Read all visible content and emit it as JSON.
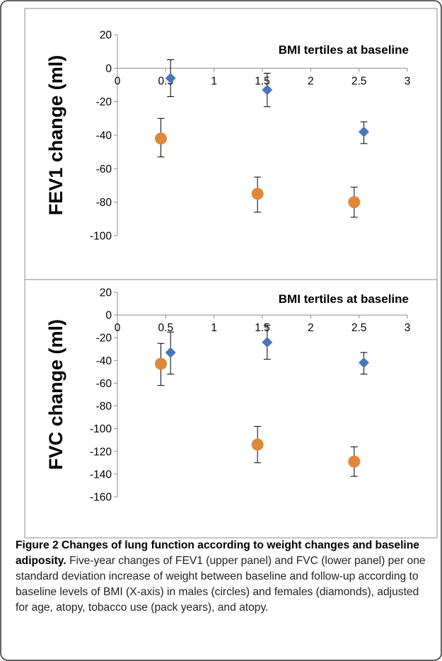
{
  "chart_data": [
    {
      "type": "scatter",
      "panel": "upper",
      "title": "BMI tertiles at baseline",
      "ylabel": "FEV1 change (ml)",
      "xlabel": "",
      "xlim": [
        0,
        3
      ],
      "ylim": [
        -100,
        20
      ],
      "x_ticks": [
        "0",
        "0.5",
        "1",
        "1.5",
        "2",
        "2.5",
        "3"
      ],
      "y_ticks": [
        "20",
        "0",
        "-20",
        "-40",
        "-60",
        "-80",
        "-100"
      ],
      "grid": false,
      "series": [
        {
          "marker": "diamond",
          "color": "#4a76b5",
          "points": [
            {
              "x": 0.55,
              "y": -6,
              "err_low": -17,
              "err_high": 5
            },
            {
              "x": 1.55,
              "y": -13,
              "err_low": -23,
              "err_high": -3
            },
            {
              "x": 2.55,
              "y": -38,
              "err_low": -45,
              "err_high": -32
            }
          ]
        },
        {
          "marker": "circle",
          "color": "#e0883a",
          "points": [
            {
              "x": 0.45,
              "y": -42,
              "err_low": -53,
              "err_high": -30
            },
            {
              "x": 1.45,
              "y": -75,
              "err_low": -86,
              "err_high": -65
            },
            {
              "x": 2.45,
              "y": -80,
              "err_low": -89,
              "err_high": -71
            }
          ]
        }
      ]
    },
    {
      "type": "scatter",
      "panel": "lower",
      "title": "BMI tertiles at baseline",
      "ylabel": "FVC change (ml)",
      "xlabel": "",
      "xlim": [
        0,
        3
      ],
      "ylim": [
        -160,
        20
      ],
      "x_ticks": [
        "0",
        "0.5",
        "1",
        "1.5",
        "2",
        "2.5",
        "3"
      ],
      "y_ticks": [
        "20",
        "0",
        "-20",
        "-40",
        "-60",
        "-80",
        "-100",
        "-120",
        "-140",
        "-160"
      ],
      "grid": false,
      "series": [
        {
          "marker": "diamond",
          "color": "#4a76b5",
          "points": [
            {
              "x": 0.55,
              "y": -33,
              "err_low": -52,
              "err_high": -15
            },
            {
              "x": 1.55,
              "y": -24,
              "err_low": -39,
              "err_high": -9
            },
            {
              "x": 2.55,
              "y": -42,
              "err_low": -52,
              "err_high": -33
            }
          ]
        },
        {
          "marker": "circle",
          "color": "#e0883a",
          "points": [
            {
              "x": 0.45,
              "y": -43,
              "err_low": -62,
              "err_high": -25
            },
            {
              "x": 1.45,
              "y": -114,
              "err_low": -130,
              "err_high": -98
            },
            {
              "x": 2.45,
              "y": -129,
              "err_low": -142,
              "err_high": -116
            }
          ]
        }
      ]
    }
  ],
  "caption": {
    "title": "Figure 2 Changes of lung function according to weight changes and baseline adiposity.",
    "body": " Five-year changes of FEV1 (upper panel) and FVC (lower panel) per one standard deviation increase of weight between baseline and follow-up according to baseline levels of BMI (X-axis) in males (circles) and females (diamonds), adjusted for age, atopy, tobacco use (pack years), and atopy."
  }
}
